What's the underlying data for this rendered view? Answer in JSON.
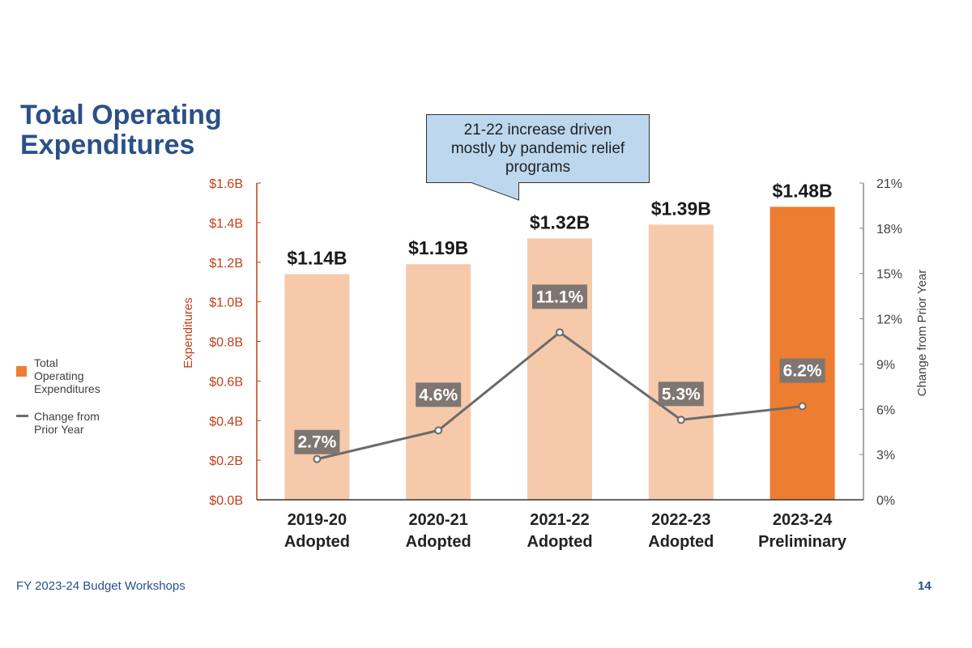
{
  "slide": {
    "title_lines": [
      "Total Operating",
      "Expenditures"
    ],
    "footer": "FY 2023-24 Budget Workshops",
    "page_number": "14"
  },
  "callout": {
    "text": "21-22 increase driven\nmostly by pandemic relief\nprograms"
  },
  "legend": [
    {
      "label": "Total\nOperating\nExpenditures",
      "type": "bar",
      "color": "#ed7d31"
    },
    {
      "label": "Change from\nPrior Year",
      "type": "line",
      "color": "#6b6b6b"
    }
  ],
  "colors": {
    "bar_adopted": "#f6c9ab",
    "bar_preliminary": "#ed7d31",
    "line": "#6b6b6b",
    "pct_label_bg": "#7f7671",
    "left_axis": "#c0401a",
    "right_axis": "#404040",
    "title": "#2b5089",
    "callout_fill": "#bdd7ee"
  },
  "chart_data": {
    "type": "bar",
    "title": "Total Operating Expenditures",
    "categories": [
      [
        "2019-20",
        "Adopted"
      ],
      [
        "2020-21",
        "Adopted"
      ],
      [
        "2021-22",
        "Adopted"
      ],
      [
        "2022-23",
        "Adopted"
      ],
      [
        "2023-24",
        "Preliminary"
      ]
    ],
    "series": [
      {
        "name": "Total Operating Expenditures",
        "type": "bar",
        "axis": "left",
        "values": [
          1.14,
          1.19,
          1.32,
          1.39,
          1.48
        ],
        "labels": [
          "$1.14B",
          "$1.19B",
          "$1.32B",
          "$1.39B",
          "$1.48B"
        ],
        "highlight_index": 4
      },
      {
        "name": "Change from Prior Year",
        "type": "line",
        "axis": "right",
        "values": [
          2.7,
          4.6,
          11.1,
          5.3,
          6.2
        ],
        "labels": [
          "2.7%",
          "4.6%",
          "11.1%",
          "5.3%",
          "6.2%"
        ]
      }
    ],
    "ylabel": "Expenditures",
    "ylim": [
      0,
      1.6
    ],
    "yticks": [
      "$0.0B",
      "$0.2B",
      "$0.4B",
      "$0.6B",
      "$0.8B",
      "$1.0B",
      "$1.2B",
      "$1.4B",
      "$1.6B"
    ],
    "y2label": "Change from Prior Year",
    "y2lim": [
      0,
      21
    ],
    "y2ticks": [
      "0%",
      "3%",
      "6%",
      "9%",
      "12%",
      "15%",
      "18%",
      "21%"
    ],
    "grid": false,
    "legend_position": "left"
  }
}
